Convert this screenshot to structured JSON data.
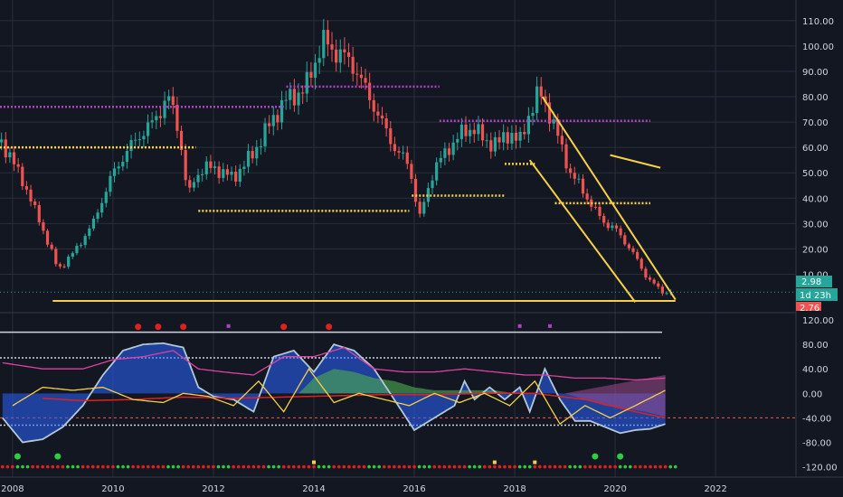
{
  "colors": {
    "background": "#131722",
    "grid": "#2a2e39",
    "up": "#26a69a",
    "down": "#ef5350",
    "yellow": "#f7d046",
    "purple": "#b040c8",
    "axis_text": "#d1d4dc",
    "price_label": "#26a69a",
    "lower_label": "#ef5350"
  },
  "price_axis": {
    "ticks": [
      "110.00",
      "100.00",
      "90.00",
      "80.00",
      "70.00",
      "60.00",
      "50.00",
      "40.00",
      "30.00",
      "20.00",
      "10.00"
    ],
    "tick_values": [
      110,
      100,
      90,
      80,
      70,
      60,
      50,
      40,
      30,
      20,
      10
    ],
    "ylim": [
      -3,
      116
    ]
  },
  "osc_axis": {
    "ticks": [
      "120.00",
      "80.00",
      "40.00",
      "0.00",
      "-40.00",
      "-80.00",
      "-120.00"
    ],
    "tick_values": [
      120,
      80,
      40,
      0,
      -40,
      -80,
      -120
    ],
    "ylim": [
      -128,
      126
    ]
  },
  "time_axis": {
    "labels": [
      "2008",
      "2010",
      "2012",
      "2014",
      "2016",
      "2018",
      "2020",
      "2022"
    ],
    "years": [
      2008,
      2010,
      2012,
      2014,
      2016,
      2018,
      2020,
      2022
    ],
    "xlim": [
      2007.75,
      2023.6
    ]
  },
  "price_labels": {
    "last_price": "2.98",
    "countdown": "1d 23h",
    "low_label": "2.76"
  },
  "chart_data": {
    "type": "candlestick",
    "price_series": {
      "x": [
        2007.8,
        2008.2,
        2008.6,
        2008.9,
        2009.2,
        2009.6,
        2010.0,
        2010.4,
        2010.8,
        2011.1,
        2011.3,
        2011.5,
        2011.6,
        2011.8,
        2012.0,
        2012.4,
        2012.8,
        2013.2,
        2013.5,
        2013.8,
        2014.0,
        2014.2,
        2014.4,
        2014.6,
        2014.8,
        2015.0,
        2015.3,
        2015.6,
        2015.9,
        2016.1,
        2016.4,
        2016.7,
        2016.9,
        2017.2,
        2017.4,
        2017.7,
        2017.9,
        2018.1,
        2018.3,
        2018.5,
        2018.7,
        2018.9,
        2019.1,
        2019.3,
        2019.5,
        2019.8,
        2020.0,
        2020.3,
        2020.6,
        2020.8,
        2021.0
      ],
      "close": [
        62,
        47,
        28,
        12,
        18,
        30,
        50,
        62,
        70,
        80,
        68,
        40,
        47,
        52,
        52,
        48,
        58,
        72,
        80,
        82,
        93,
        102,
        98,
        96,
        92,
        84,
        72,
        60,
        53,
        32,
        52,
        60,
        65,
        68,
        62,
        62,
        66,
        62,
        74,
        82,
        73,
        62,
        50,
        45,
        38,
        30,
        28,
        20,
        10,
        5,
        3
      ]
    },
    "horizontal_levels": [
      {
        "color": "yellow",
        "y": 60,
        "x0": 2007.75,
        "x1": 2011.65
      },
      {
        "color": "yellow",
        "y": 35,
        "x0": 2011.7,
        "x1": 2015.9
      },
      {
        "color": "yellow",
        "y": 41,
        "x0": 2015.95,
        "x1": 2017.8
      },
      {
        "color": "yellow",
        "y": 53.5,
        "x0": 2017.8,
        "x1": 2018.4
      },
      {
        "color": "yellow",
        "y": 38,
        "x0": 2018.8,
        "x1": 2020.7
      },
      {
        "color": "purple",
        "y": 76,
        "x0": 2007.75,
        "x1": 2013.4
      },
      {
        "color": "purple",
        "y": 84,
        "x0": 2013.45,
        "x1": 2016.5
      },
      {
        "color": "purple",
        "y": 70.5,
        "x0": 2016.5,
        "x1": 2020.7
      }
    ],
    "trendlines": [
      {
        "points": [
          [
            2008.8,
            -0.5
          ],
          [
            2021.2,
            -0.5
          ]
        ]
      },
      {
        "points": [
          [
            2018.55,
            80
          ],
          [
            2021.2,
            0
          ]
        ]
      },
      {
        "points": [
          [
            2018.3,
            55
          ],
          [
            2020.4,
            -1
          ]
        ]
      },
      {
        "points": [
          [
            2019.9,
            57
          ],
          [
            2020.9,
            52
          ]
        ]
      }
    ],
    "oscillator": {
      "hlines": [
        100,
        58,
        -52
      ],
      "dashed": [
        -40
      ],
      "wave": {
        "x": [
          2007.8,
          2008.2,
          2008.6,
          2009.0,
          2009.4,
          2009.8,
          2010.2,
          2010.6,
          2011.0,
          2011.4,
          2011.7,
          2012.0,
          2012.4,
          2012.8,
          2013.2,
          2013.6,
          2014.0,
          2014.4,
          2014.8,
          2015.2,
          2015.6,
          2016.0,
          2016.4,
          2016.8,
          2017.0,
          2017.2,
          2017.5,
          2017.8,
          2018.1,
          2018.3,
          2018.6,
          2018.9,
          2019.2,
          2019.5,
          2019.8,
          2020.1,
          2020.4,
          2020.7,
          2021.0
        ],
        "y": [
          -40,
          -80,
          -75,
          -55,
          -20,
          30,
          70,
          80,
          82,
          75,
          10,
          -5,
          -10,
          -30,
          60,
          70,
          35,
          80,
          70,
          40,
          -10,
          -60,
          -40,
          -20,
          20,
          -10,
          10,
          -10,
          10,
          -30,
          40,
          -10,
          -45,
          -45,
          -55,
          -65,
          -60,
          -58,
          -50
        ]
      },
      "pink": {
        "x": [
          2007.8,
          2008.6,
          2009.4,
          2010.0,
          2010.6,
          2011.2,
          2011.7,
          2012.2,
          2012.8,
          2013.4,
          2014.0,
          2014.6,
          2015.2,
          2015.8,
          2016.4,
          2017.0,
          2017.6,
          2018.2,
          2018.6,
          2019.2,
          2019.8,
          2020.4,
          2021.0
        ],
        "y": [
          50,
          40,
          40,
          55,
          60,
          70,
          40,
          35,
          30,
          60,
          60,
          75,
          40,
          35,
          35,
          40,
          35,
          30,
          30,
          25,
          25,
          22,
          25
        ]
      },
      "green_area": {
        "x": [
          2013.7,
          2014.0,
          2014.4,
          2014.8,
          2015.2,
          2015.6,
          2016.0,
          2016.4,
          2016.8,
          2017.2,
          2017.6,
          2018.0
        ],
        "y": [
          0,
          25,
          40,
          35,
          25,
          20,
          10,
          5,
          5,
          5,
          5,
          0
        ]
      },
      "purple_area": {
        "x": [
          2019.0,
          2019.4,
          2019.8,
          2020.2,
          2020.6,
          2021.0
        ],
        "y": [
          0,
          -10,
          -20,
          -25,
          -30,
          -38
        ]
      },
      "red_line": {
        "x": [
          2008.6,
          2009.4,
          2010.4,
          2011.4,
          2012.4,
          2013.4,
          2014.4,
          2015.4,
          2016.4,
          2017.4,
          2018.4,
          2019.4,
          2020.4,
          2021.0
        ],
        "y": [
          -8,
          -12,
          -10,
          -6,
          -8,
          -6,
          -4,
          -2,
          -2,
          0,
          0,
          -10,
          -30,
          -40
        ]
      },
      "yellow_line": {
        "x": [
          2008.0,
          2008.6,
          2009.2,
          2009.8,
          2010.4,
          2011.0,
          2011.4,
          2011.9,
          2012.4,
          2012.9,
          2013.4,
          2013.9,
          2014.4,
          2014.9,
          2015.4,
          2015.9,
          2016.4,
          2016.9,
          2017.4,
          2017.9,
          2018.4,
          2018.9,
          2019.4,
          2019.9,
          2020.4,
          2021.0
        ],
        "y": [
          -20,
          10,
          5,
          10,
          -10,
          -15,
          0,
          -5,
          -20,
          20,
          -30,
          40,
          -15,
          0,
          -10,
          -20,
          0,
          -15,
          0,
          -20,
          20,
          -50,
          -20,
          -40,
          -20,
          5
        ]
      },
      "red_dots": [
        [
          2010.5,
          100
        ],
        [
          2010.9,
          100
        ],
        [
          2011.4,
          100
        ],
        [
          2013.4,
          100
        ],
        [
          2014.3,
          100
        ]
      ],
      "purple_squares": [
        [
          2012.3,
          110
        ],
        [
          2018.1,
          110
        ],
        [
          2018.7,
          110
        ]
      ],
      "green_dots": [
        [
          2008.1,
          -103
        ],
        [
          2008.9,
          -103
        ],
        [
          2019.6,
          -103
        ],
        [
          2020.1,
          -103
        ]
      ],
      "bottom_row_y": -120,
      "bottom_yellow_marks": [
        2014.0,
        2017.6,
        2018.4
      ]
    }
  }
}
